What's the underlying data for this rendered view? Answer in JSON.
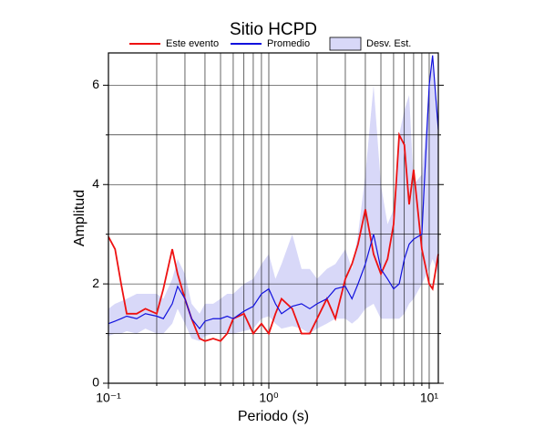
{
  "chart_data": {
    "type": "line",
    "title": "Sitio HCPD",
    "xlabel": "Periodo (s)",
    "ylabel": "Amplitud",
    "xscale": "log",
    "xlim": [
      0.1,
      11.4
    ],
    "ylim": [
      0,
      6.65
    ],
    "xticks": [
      {
        "value": 0.1,
        "label": "10⁻¹"
      },
      {
        "value": 1,
        "label": "10⁰"
      },
      {
        "value": 10,
        "label": "10¹"
      }
    ],
    "xminor": [
      0.2,
      0.3,
      0.4,
      0.5,
      0.6,
      0.7,
      0.8,
      0.9,
      2,
      3,
      4,
      5,
      6,
      7,
      8,
      9
    ],
    "yticks": [
      0,
      2,
      4,
      6
    ],
    "yminor": [
      1,
      3,
      5
    ],
    "grid": true,
    "legend": "top",
    "x": [
      0.1,
      0.11,
      0.12,
      0.13,
      0.15,
      0.17,
      0.2,
      0.22,
      0.25,
      0.27,
      0.3,
      0.33,
      0.37,
      0.4,
      0.45,
      0.5,
      0.55,
      0.6,
      0.7,
      0.8,
      0.9,
      1.0,
      1.1,
      1.2,
      1.4,
      1.6,
      1.8,
      2.0,
      2.3,
      2.6,
      3.0,
      3.3,
      3.6,
      4.0,
      4.5,
      5.0,
      5.5,
      6.0,
      6.5,
      7.0,
      7.5,
      8.0,
      9.0,
      10.0,
      10.5,
      11.4
    ],
    "series": [
      {
        "name": "Este evento",
        "color": "#ee1111",
        "values": [
          2.95,
          2.7,
          2.0,
          1.4,
          1.4,
          1.5,
          1.4,
          1.9,
          2.7,
          2.2,
          1.7,
          1.3,
          0.9,
          0.85,
          0.9,
          0.85,
          1.0,
          1.3,
          1.4,
          1.0,
          1.2,
          1.0,
          1.4,
          1.7,
          1.5,
          1.0,
          1.0,
          1.3,
          1.7,
          1.3,
          2.1,
          2.4,
          2.8,
          3.5,
          2.6,
          2.2,
          2.5,
          3.2,
          5.0,
          4.8,
          3.6,
          4.3,
          2.7,
          2.0,
          1.9,
          2.6
        ]
      },
      {
        "name": "Promedio",
        "color": "#1111dd",
        "values": [
          1.2,
          1.25,
          1.3,
          1.35,
          1.3,
          1.4,
          1.35,
          1.3,
          1.6,
          1.95,
          1.7,
          1.3,
          1.1,
          1.25,
          1.3,
          1.3,
          1.35,
          1.3,
          1.45,
          1.55,
          1.8,
          1.9,
          1.6,
          1.4,
          1.55,
          1.6,
          1.5,
          1.6,
          1.7,
          1.9,
          1.95,
          1.7,
          2.0,
          2.4,
          3.0,
          2.3,
          2.1,
          1.9,
          2.0,
          2.5,
          2.8,
          2.9,
          3.0,
          6.0,
          6.6,
          5.1
        ]
      },
      {
        "name": "Desv. Est.",
        "color": "#d8d8f8",
        "lower": [
          0.95,
          1.0,
          1.0,
          1.05,
          1.0,
          1.1,
          1.0,
          1.0,
          1.2,
          1.5,
          1.2,
          0.9,
          0.85,
          0.95,
          1.0,
          1.0,
          1.0,
          1.0,
          1.05,
          1.1,
          1.3,
          1.35,
          1.2,
          1.1,
          1.15,
          1.1,
          1.0,
          1.1,
          1.2,
          1.3,
          1.3,
          1.2,
          1.3,
          1.5,
          1.6,
          1.3,
          1.3,
          1.3,
          1.3,
          1.4,
          1.6,
          1.7,
          2.0,
          2.3,
          2.5,
          2.2
        ],
        "upper": [
          1.5,
          1.6,
          1.65,
          1.7,
          1.8,
          1.8,
          1.8,
          1.7,
          2.1,
          2.5,
          2.2,
          1.6,
          1.4,
          1.6,
          1.6,
          1.7,
          1.8,
          1.8,
          2.0,
          2.1,
          2.4,
          2.6,
          2.1,
          2.4,
          3.0,
          2.3,
          2.3,
          2.1,
          2.3,
          2.4,
          2.7,
          2.3,
          3.0,
          4.2,
          6.0,
          4.0,
          3.2,
          3.5,
          5.0,
          5.5,
          5.8,
          4.0,
          4.2,
          6.0,
          6.6,
          5.0
        ]
      }
    ]
  }
}
